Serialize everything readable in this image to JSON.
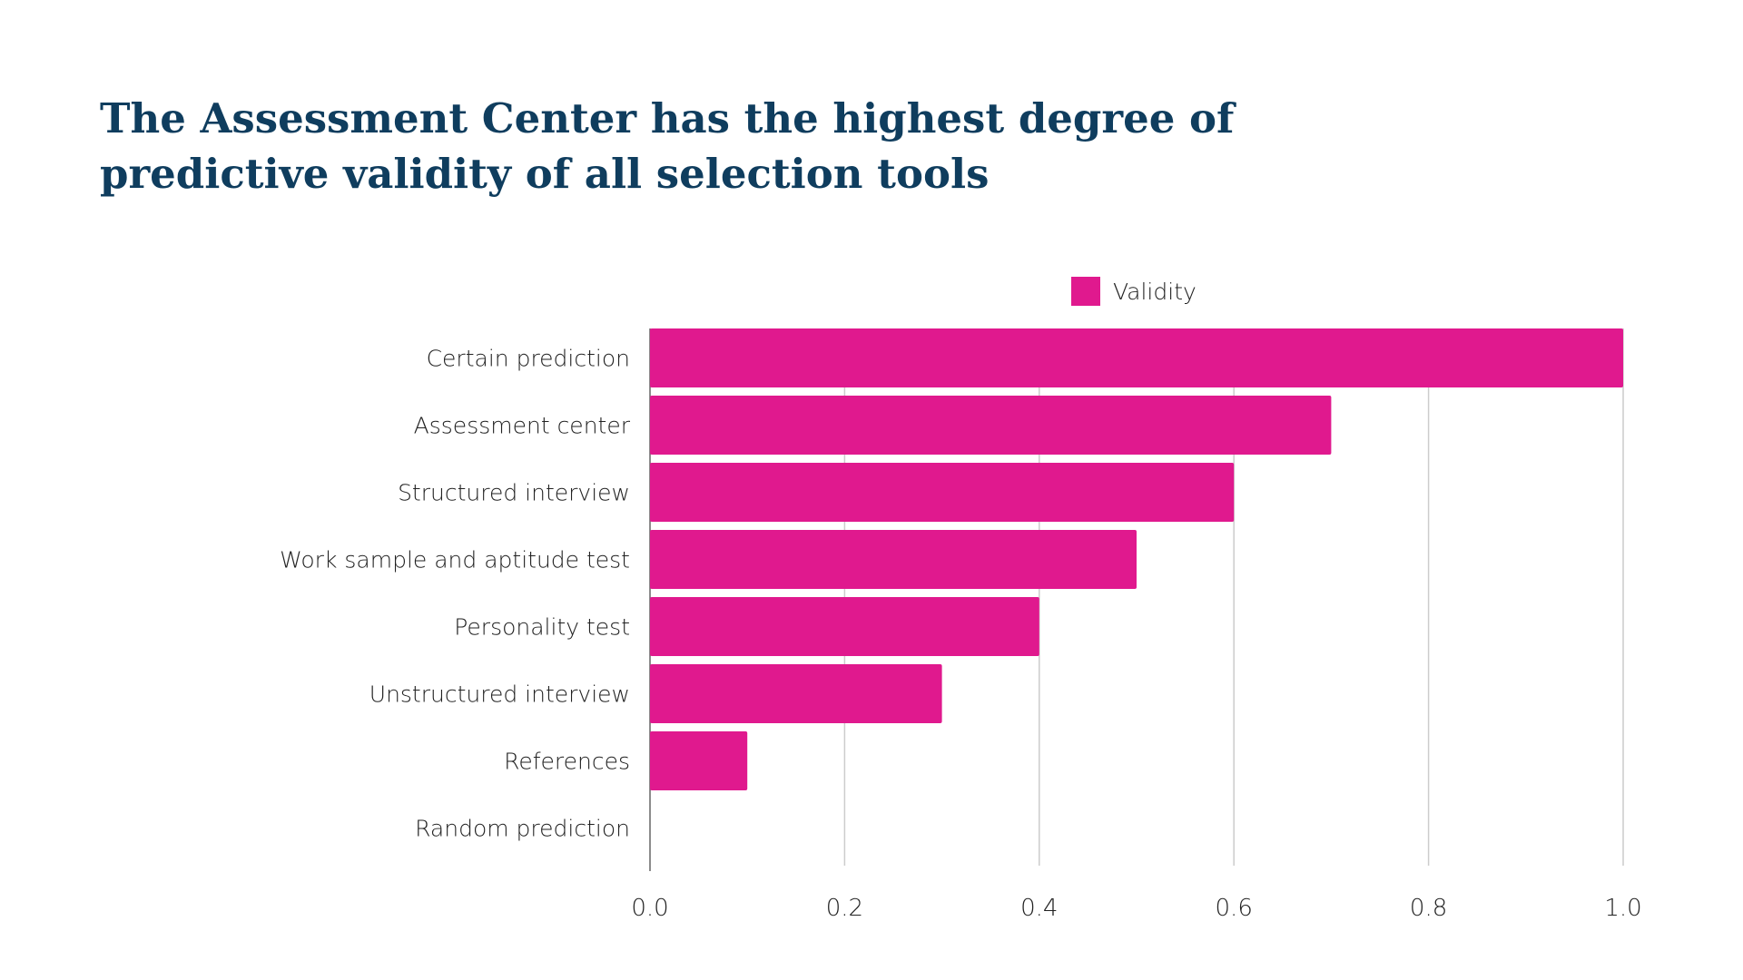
{
  "title": "The Assessment Center has the highest degree of predictive validity of all selection tools",
  "chart_data": {
    "type": "bar",
    "orientation": "horizontal",
    "categories": [
      "Certain prediction",
      "Assessment center",
      "Structured interview",
      "Work sample and aptitude test",
      "Personality test",
      "Unstructured interview",
      "References",
      "Random prediction"
    ],
    "series": [
      {
        "name": "Validity",
        "color": "#e0198e",
        "values": [
          1.0,
          0.7,
          0.6,
          0.5,
          0.4,
          0.3,
          0.1,
          0.0
        ]
      }
    ],
    "x_ticks": [
      "0.0",
      "0.2",
      "0.4",
      "0.6",
      "0.8",
      "1.0"
    ],
    "xlim": [
      0,
      1.0
    ],
    "grid": true,
    "legend_position": "top"
  }
}
